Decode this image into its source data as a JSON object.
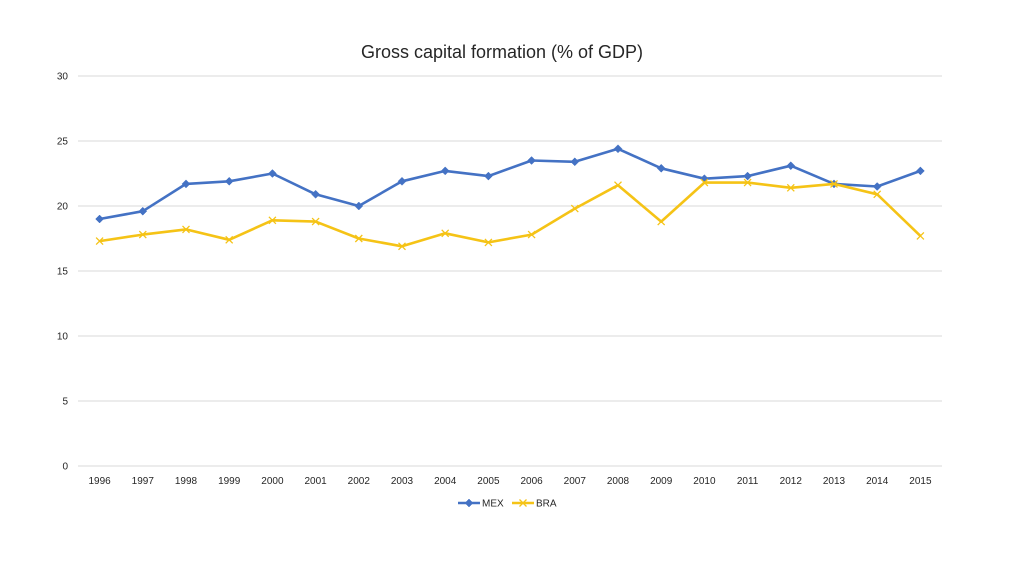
{
  "chart_data": {
    "type": "line",
    "title": "Gross capital formation (% of GDP)",
    "xlabel": "",
    "ylabel": "",
    "ylim": [
      0,
      30
    ],
    "yticks": [
      "0",
      "5",
      "10",
      "15",
      "20",
      "25",
      "30"
    ],
    "grid": true,
    "legend_position": "bottom",
    "categories": [
      "1996",
      "1997",
      "1998",
      "1999",
      "2000",
      "2001",
      "2002",
      "2003",
      "2004",
      "2005",
      "2006",
      "2007",
      "2008",
      "2009",
      "2010",
      "2011",
      "2012",
      "2013",
      "2014",
      "2015"
    ],
    "series": [
      {
        "name": "MEX",
        "color": "#4472c4",
        "marker": "diamond",
        "values": [
          19.0,
          19.6,
          21.7,
          21.9,
          22.5,
          20.9,
          20.0,
          21.9,
          22.7,
          22.3,
          23.5,
          23.4,
          24.4,
          22.9,
          22.1,
          22.3,
          23.1,
          21.7,
          21.5,
          22.7
        ]
      },
      {
        "name": "BRA",
        "color": "#f5c316",
        "marker": "x",
        "values": [
          17.3,
          17.8,
          18.2,
          17.4,
          18.9,
          18.8,
          17.5,
          16.9,
          17.9,
          17.2,
          17.8,
          19.8,
          21.6,
          18.8,
          21.8,
          21.8,
          21.4,
          21.7,
          20.9,
          17.7
        ]
      }
    ]
  }
}
